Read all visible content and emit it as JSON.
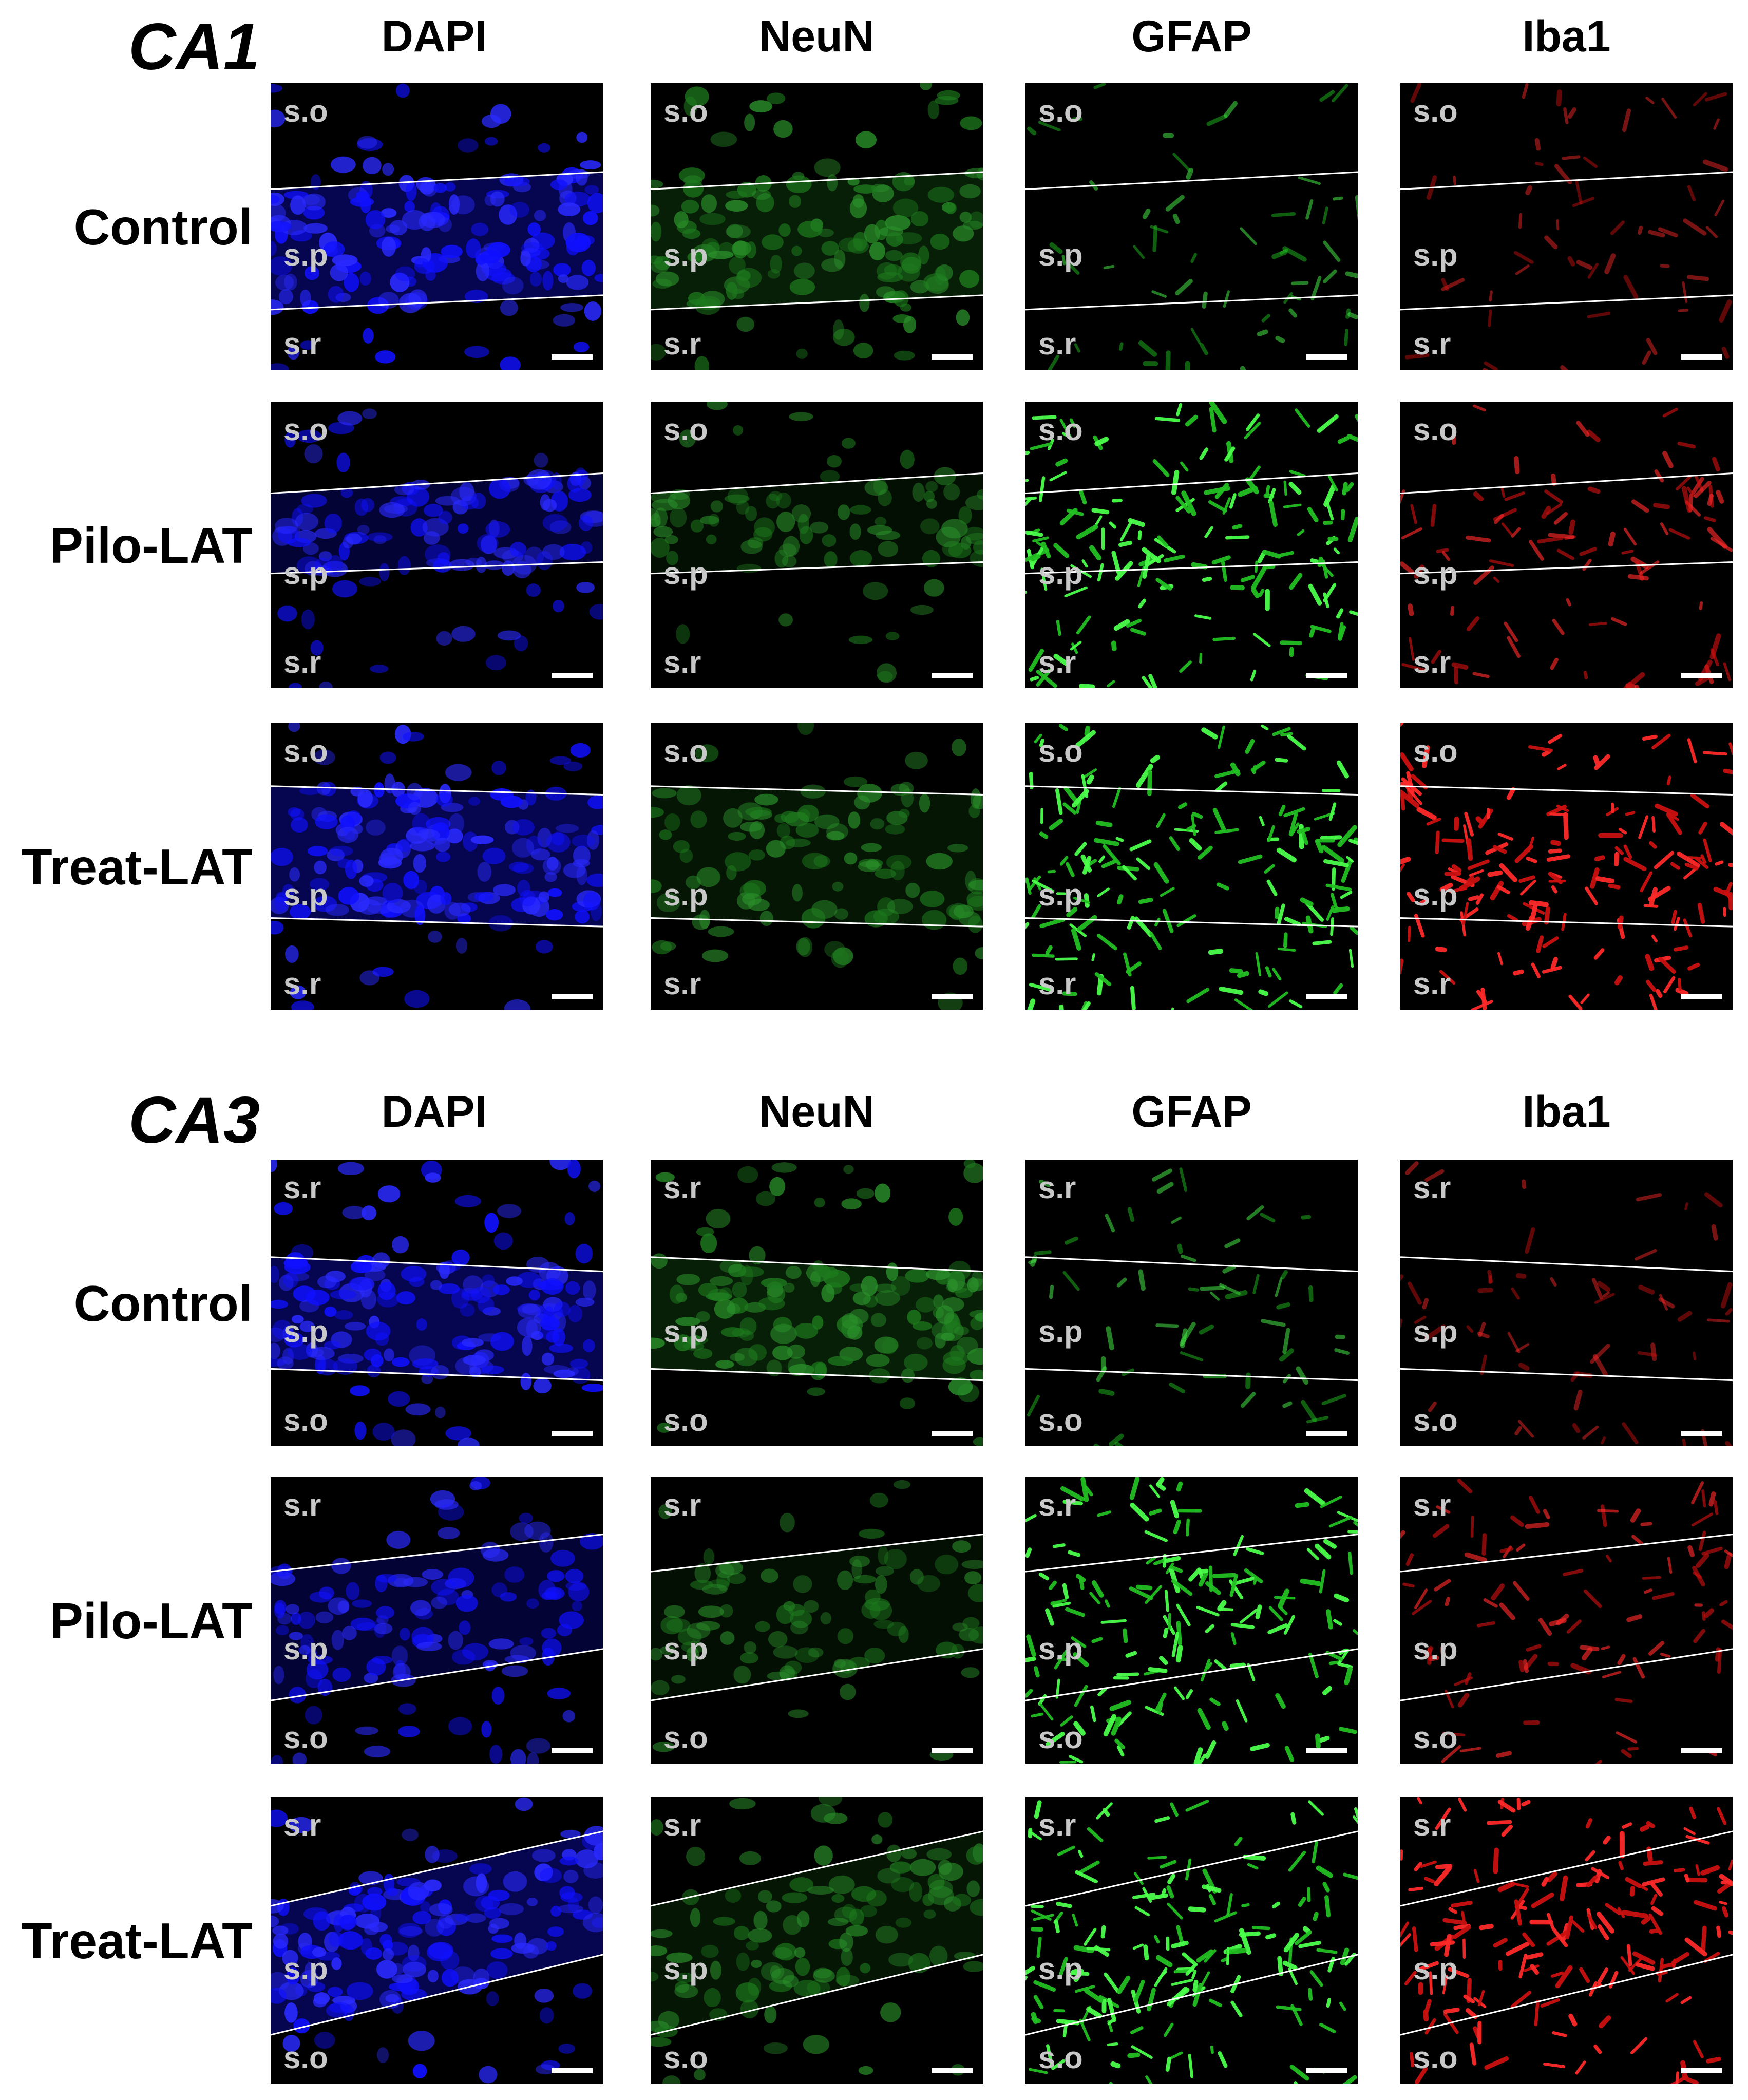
{
  "sections": [
    {
      "title": "CA1",
      "columns": [
        "DAPI",
        "NeuN",
        "GFAP",
        "Iba1"
      ],
      "layers": [
        "s.o",
        "s.p",
        "s.r"
      ],
      "rows": [
        {
          "label": "Control"
        },
        {
          "label": "Pilo-LAT"
        },
        {
          "label": "Treat-LAT"
        }
      ]
    },
    {
      "title": "CA3",
      "columns": [
        "DAPI",
        "NeuN",
        "GFAP",
        "Iba1"
      ],
      "layers": [
        "s.r",
        "s.p",
        "s.o"
      ],
      "rows": [
        {
          "label": "Control"
        },
        {
          "label": "Pilo-LAT"
        },
        {
          "label": "Treat-LAT"
        }
      ]
    }
  ]
}
